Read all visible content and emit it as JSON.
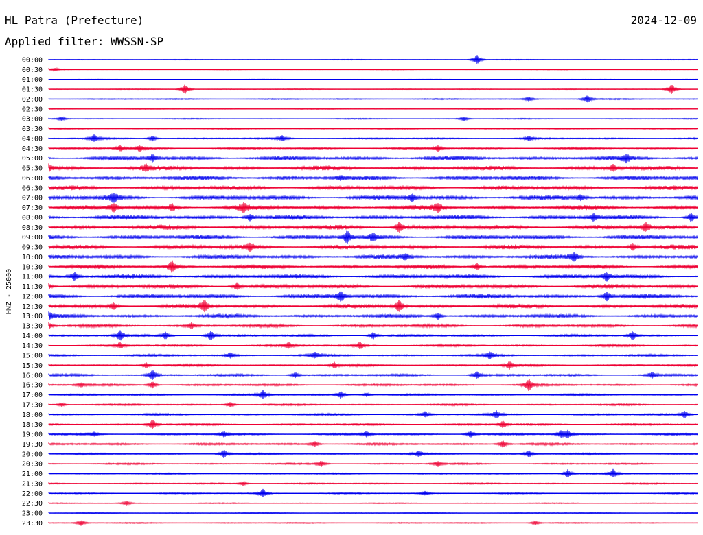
{
  "header": {
    "station": "HL Patra (Prefecture)",
    "date": "2024-12-09",
    "filter": "Applied filter: WWSSN-SP"
  },
  "colors": {
    "blue": "#0000ee",
    "red": "#ee0033"
  },
  "chart_data": {
    "type": "line",
    "ylabel": "HNZ - 25000",
    "row_labels": [
      "00:00",
      "00:30",
      "01:00",
      "01:30",
      "02:00",
      "02:30",
      "03:00",
      "03:30",
      "04:00",
      "04:30",
      "05:00",
      "05:30",
      "06:00",
      "06:30",
      "07:00",
      "07:30",
      "08:00",
      "08:30",
      "09:00",
      "09:30",
      "10:00",
      "10:30",
      "11:00",
      "11:30",
      "12:00",
      "12:30",
      "13:00",
      "13:30",
      "14:00",
      "14:30",
      "15:00",
      "15:30",
      "16:00",
      "16:30",
      "17:00",
      "17:30",
      "18:00",
      "18:30",
      "19:00",
      "19:30",
      "20:00",
      "20:30",
      "21:00",
      "21:30",
      "22:00",
      "22:30",
      "23:00",
      "23:30"
    ],
    "trace_colors": "alternating blue/red",
    "noise_level": [
      0.5,
      0.5,
      0.4,
      0.5,
      0.7,
      0.5,
      0.6,
      0.8,
      1.0,
      1.2,
      2.4,
      2.6,
      2.6,
      2.6,
      2.6,
      2.6,
      2.7,
      2.8,
      2.6,
      2.6,
      2.3,
      2.4,
      2.6,
      2.6,
      2.6,
      2.4,
      2.0,
      1.9,
      1.4,
      1.4,
      1.3,
      1.4,
      1.3,
      1.3,
      1.2,
      1.1,
      1.2,
      1.3,
      1.2,
      1.3,
      1.1,
      1.0,
      0.9,
      0.9,
      0.8,
      0.6,
      0.7,
      0.7
    ],
    "events": [
      [
        0,
        0.66,
        7
      ],
      [
        1,
        0.01,
        2
      ],
      [
        3,
        0.21,
        7
      ],
      [
        3,
        0.96,
        7
      ],
      [
        4,
        0.83,
        5
      ],
      [
        4,
        0.74,
        3
      ],
      [
        6,
        0.02,
        3
      ],
      [
        6,
        0.64,
        3
      ],
      [
        8,
        0.07,
        5
      ],
      [
        8,
        0.16,
        4
      ],
      [
        8,
        0.36,
        4
      ],
      [
        8,
        0.74,
        3
      ],
      [
        9,
        0.11,
        4
      ],
      [
        9,
        0.14,
        4
      ],
      [
        9,
        0.6,
        4
      ],
      [
        10,
        0.16,
        5
      ],
      [
        10,
        0.89,
        5
      ],
      [
        11,
        0.0,
        5
      ],
      [
        11,
        0.15,
        4
      ],
      [
        11,
        0.87,
        5
      ],
      [
        12,
        0.45,
        3
      ],
      [
        14,
        0.1,
        6
      ],
      [
        14,
        0.56,
        5
      ],
      [
        14,
        0.82,
        4
      ],
      [
        15,
        0.1,
        6
      ],
      [
        15,
        0.19,
        5
      ],
      [
        15,
        0.3,
        6
      ],
      [
        15,
        0.6,
        6
      ],
      [
        16,
        0.31,
        5
      ],
      [
        16,
        0.84,
        5
      ],
      [
        16,
        0.99,
        6
      ],
      [
        17,
        0.54,
        8
      ],
      [
        17,
        0.92,
        6
      ],
      [
        18,
        0.46,
        9
      ],
      [
        18,
        0.5,
        5
      ],
      [
        19,
        0.31,
        5
      ],
      [
        19,
        0.9,
        5
      ],
      [
        20,
        0.55,
        4
      ],
      [
        20,
        0.81,
        6
      ],
      [
        21,
        0.19,
        8
      ],
      [
        21,
        0.66,
        5
      ],
      [
        22,
        0.04,
        6
      ],
      [
        22,
        0.86,
        6
      ],
      [
        23,
        0.0,
        4
      ],
      [
        23,
        0.29,
        5
      ],
      [
        24,
        0.45,
        7
      ],
      [
        24,
        0.86,
        7
      ],
      [
        25,
        0.24,
        8
      ],
      [
        25,
        0.54,
        9
      ],
      [
        25,
        0.1,
        5
      ],
      [
        26,
        0.0,
        5
      ],
      [
        26,
        0.6,
        5
      ],
      [
        27,
        0.0,
        5
      ],
      [
        27,
        0.22,
        4
      ],
      [
        28,
        0.11,
        7
      ],
      [
        28,
        0.18,
        5
      ],
      [
        28,
        0.25,
        7
      ],
      [
        28,
        0.5,
        5
      ],
      [
        28,
        0.9,
        6
      ],
      [
        29,
        0.11,
        4
      ],
      [
        29,
        0.37,
        4
      ],
      [
        29,
        0.48,
        5
      ],
      [
        30,
        0.28,
        4
      ],
      [
        30,
        0.41,
        4
      ],
      [
        30,
        0.68,
        5
      ],
      [
        31,
        0.15,
        4
      ],
      [
        31,
        0.44,
        4
      ],
      [
        31,
        0.71,
        5
      ],
      [
        32,
        0.16,
        7
      ],
      [
        32,
        0.38,
        4
      ],
      [
        32,
        0.66,
        5
      ],
      [
        32,
        0.93,
        4
      ],
      [
        33,
        0.05,
        3
      ],
      [
        33,
        0.16,
        5
      ],
      [
        33,
        0.74,
        8
      ],
      [
        34,
        0.33,
        6
      ],
      [
        34,
        0.45,
        5
      ],
      [
        34,
        0.49,
        3
      ],
      [
        35,
        0.02,
        3
      ],
      [
        35,
        0.28,
        4
      ],
      [
        36,
        0.58,
        4
      ],
      [
        36,
        0.69,
        5
      ],
      [
        36,
        0.98,
        5
      ],
      [
        37,
        0.16,
        7
      ],
      [
        37,
        0.7,
        5
      ],
      [
        38,
        0.07,
        3
      ],
      [
        38,
        0.27,
        4
      ],
      [
        38,
        0.49,
        4
      ],
      [
        38,
        0.65,
        5
      ],
      [
        38,
        0.79,
        5
      ],
      [
        38,
        0.8,
        5
      ],
      [
        39,
        0.41,
        4
      ],
      [
        39,
        0.7,
        5
      ],
      [
        40,
        0.27,
        6
      ],
      [
        40,
        0.57,
        4
      ],
      [
        40,
        0.74,
        5
      ],
      [
        41,
        0.42,
        4
      ],
      [
        41,
        0.6,
        4
      ],
      [
        42,
        0.8,
        6
      ],
      [
        42,
        0.87,
        6
      ],
      [
        43,
        0.3,
        3
      ],
      [
        44,
        0.33,
        6
      ],
      [
        44,
        0.58,
        3
      ],
      [
        45,
        0.12,
        3
      ],
      [
        47,
        0.05,
        4
      ],
      [
        47,
        0.75,
        3
      ]
    ],
    "xlim": [
      0,
      30
    ]
  }
}
